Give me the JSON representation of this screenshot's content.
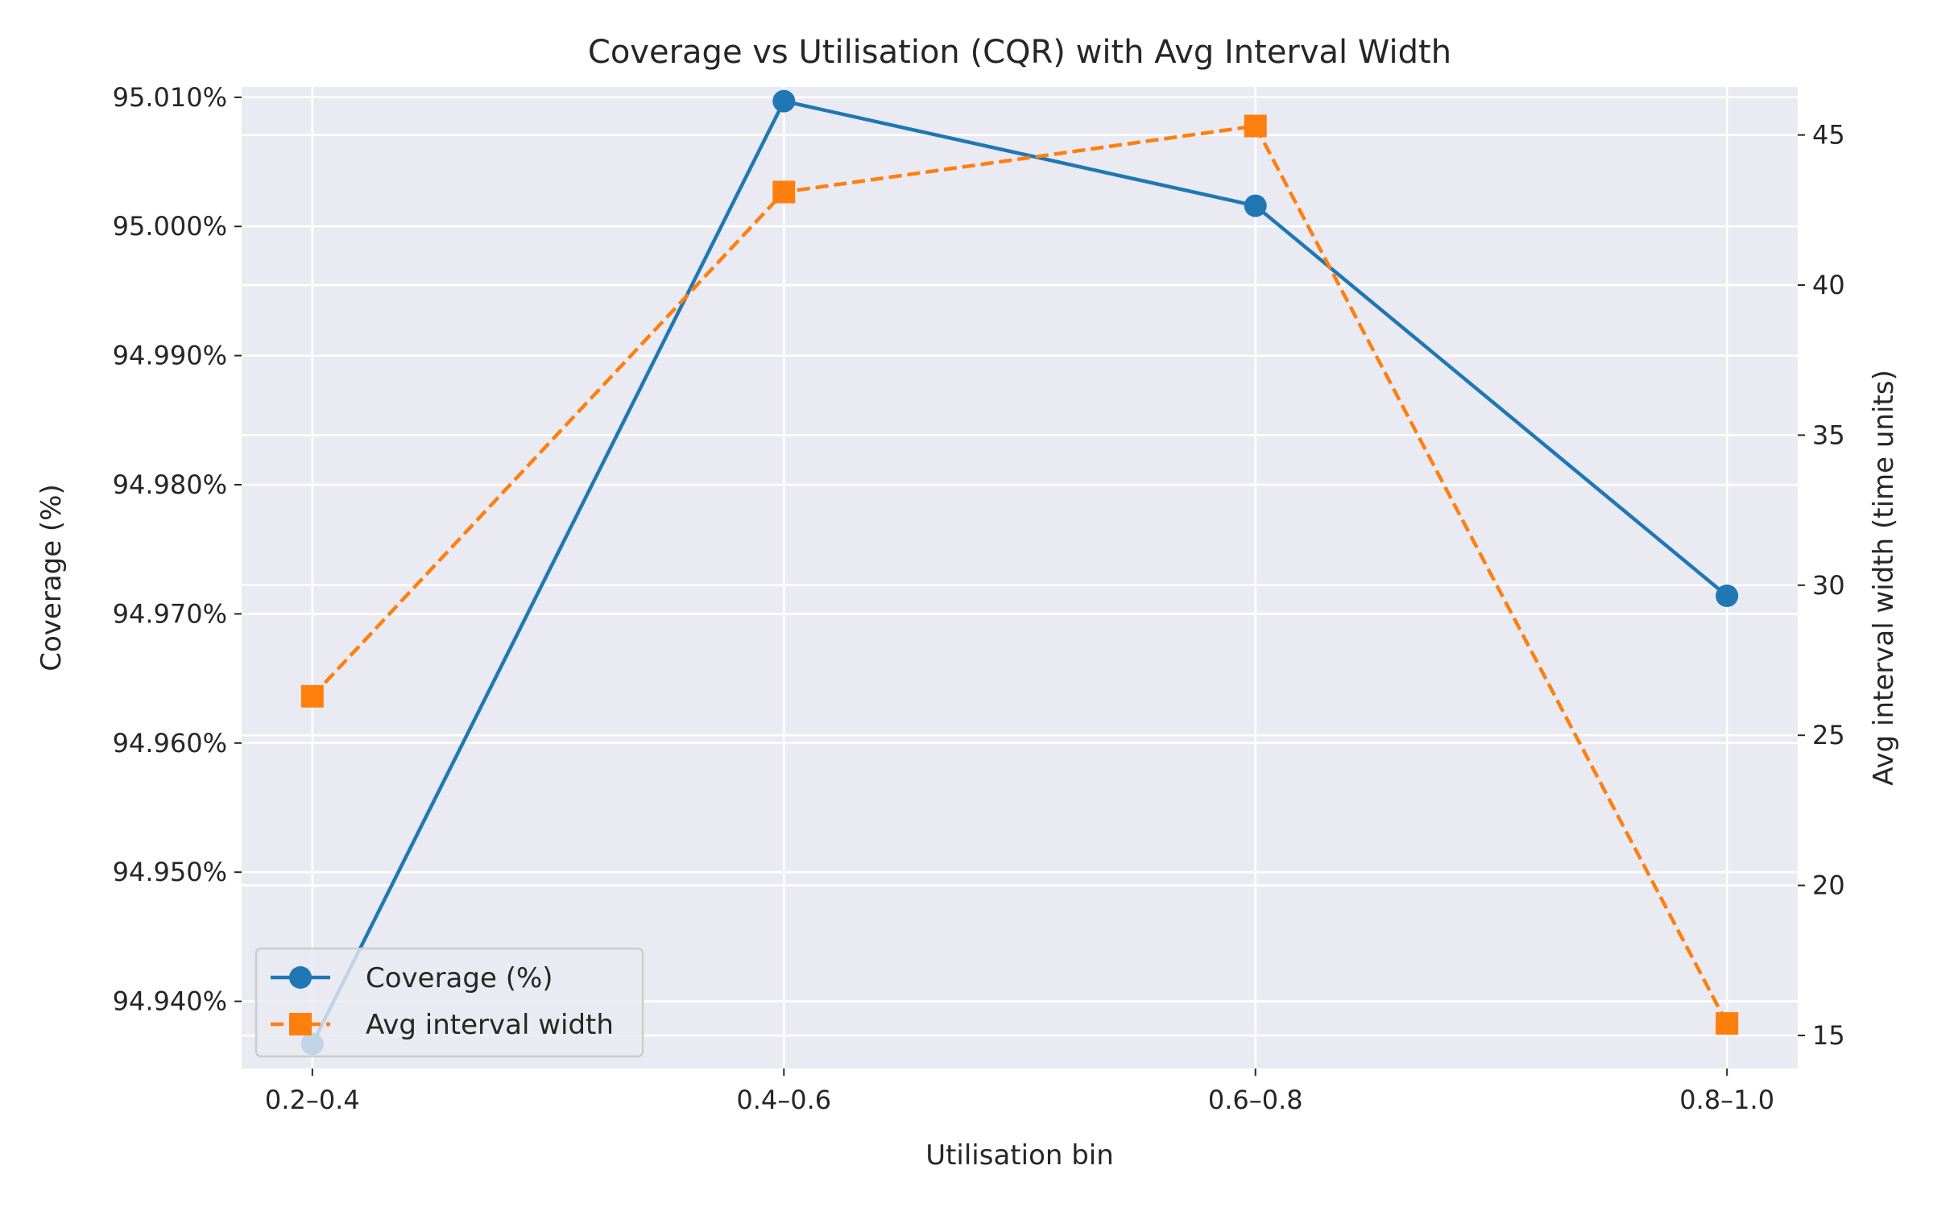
{
  "chart_data": {
    "type": "line",
    "title": "Coverage vs Utilisation (CQR) with Avg Interval Width",
    "xlabel": "Utilisation bin",
    "ylabel_left": "Coverage (%)",
    "ylabel_right": "Avg interval width (time units)",
    "categories": [
      "0.2–0.4",
      "0.4–0.6",
      "0.6–0.8",
      "0.8–1.0"
    ],
    "left_axis": {
      "ylim": [
        94.9348,
        95.0108
      ],
      "ticks": [
        94.94,
        94.95,
        94.96,
        94.97,
        94.98,
        94.99,
        95.0,
        95.01
      ],
      "tick_labels": [
        "94.940%",
        "94.950%",
        "94.960%",
        "94.970%",
        "94.980%",
        "94.990%",
        "95.000%",
        "95.010%"
      ]
    },
    "right_axis": {
      "ylim": [
        13.9,
        46.6
      ],
      "ticks": [
        15,
        20,
        25,
        30,
        35,
        40,
        45
      ],
      "tick_labels": [
        "15",
        "20",
        "25",
        "30",
        "35",
        "40",
        "45"
      ]
    },
    "series": [
      {
        "name": "Coverage (%)",
        "axis": "left",
        "values": [
          94.9367,
          95.0097,
          95.0016,
          94.9714
        ],
        "color": "#1f77b4",
        "marker": "circle",
        "line_style": "solid"
      },
      {
        "name": "Avg interval width",
        "axis": "right",
        "values": [
          26.3,
          43.1,
          45.3,
          15.4
        ],
        "color": "#ff7f0e",
        "marker": "square",
        "line_style": "dashed"
      }
    ],
    "grid": true,
    "legend_position": "lower-left"
  }
}
